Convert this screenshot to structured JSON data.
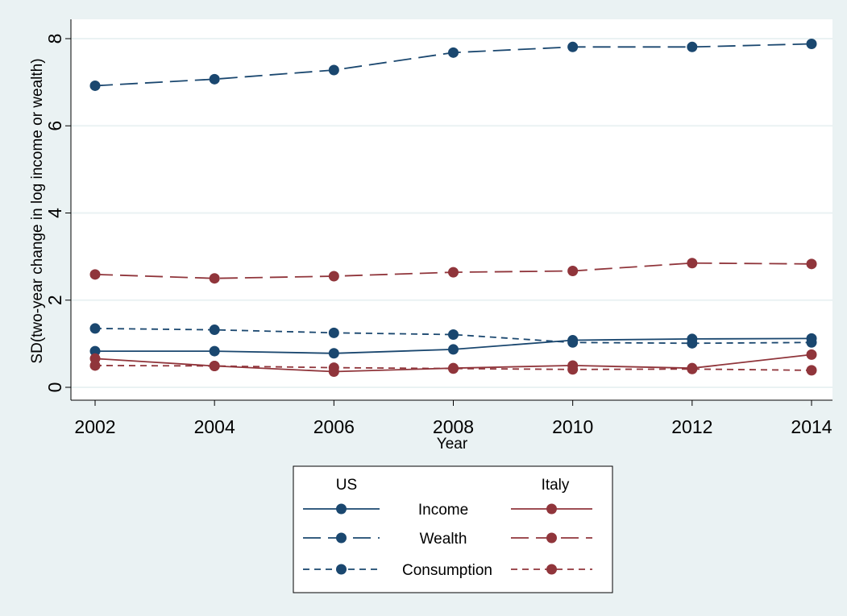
{
  "colors": {
    "background": "#eaf2f3",
    "plot_area": "#ffffff",
    "gridline": "#eaf2f3",
    "us": "#1a476f",
    "italy": "#90353b"
  },
  "chart_data": {
    "type": "line",
    "title": "",
    "xlabel": "Year",
    "ylabel": "SD(two-year change in log income or wealth)",
    "x": [
      2002,
      2004,
      2006,
      2008,
      2010,
      2012,
      2014
    ],
    "xticks": [
      "2002",
      "2004",
      "2006",
      "2008",
      "2010",
      "2012",
      "2014"
    ],
    "yticks": [
      "0",
      "2",
      "4",
      "6",
      "8"
    ],
    "ylim": [
      0,
      8
    ],
    "grid": true,
    "legend_position": "bottom",
    "legend": {
      "column_headers": [
        "US",
        "Italy"
      ],
      "row_labels": [
        "Income",
        "Wealth",
        "Consumption"
      ]
    },
    "series": [
      {
        "name": "US Income",
        "group": "US",
        "measure": "Income",
        "style": "solid",
        "color": "#1a476f",
        "values": [
          0.83,
          0.83,
          0.78,
          0.87,
          1.08,
          1.11,
          1.12
        ]
      },
      {
        "name": "US Wealth",
        "group": "US",
        "measure": "Wealth",
        "style": "longdash",
        "color": "#1a476f",
        "values": [
          6.92,
          7.07,
          7.28,
          7.68,
          7.81,
          7.81,
          7.88
        ]
      },
      {
        "name": "US Consumption",
        "group": "US",
        "measure": "Consumption",
        "style": "shortdash",
        "color": "#1a476f",
        "values": [
          1.35,
          1.32,
          1.25,
          1.21,
          1.03,
          1.01,
          1.03
        ]
      },
      {
        "name": "Italy Income",
        "group": "Italy",
        "measure": "Income",
        "style": "solid",
        "color": "#90353b",
        "values": [
          0.66,
          0.49,
          0.36,
          0.44,
          0.5,
          0.44,
          0.75
        ]
      },
      {
        "name": "Italy Wealth",
        "group": "Italy",
        "measure": "Wealth",
        "style": "longdash",
        "color": "#90353b",
        "values": [
          2.59,
          2.5,
          2.55,
          2.64,
          2.67,
          2.85,
          2.83
        ]
      },
      {
        "name": "Italy Consumption",
        "group": "Italy",
        "measure": "Consumption",
        "style": "shortdash",
        "color": "#90353b",
        "values": [
          0.5,
          0.49,
          0.45,
          0.43,
          0.41,
          0.42,
          0.39
        ]
      }
    ]
  }
}
